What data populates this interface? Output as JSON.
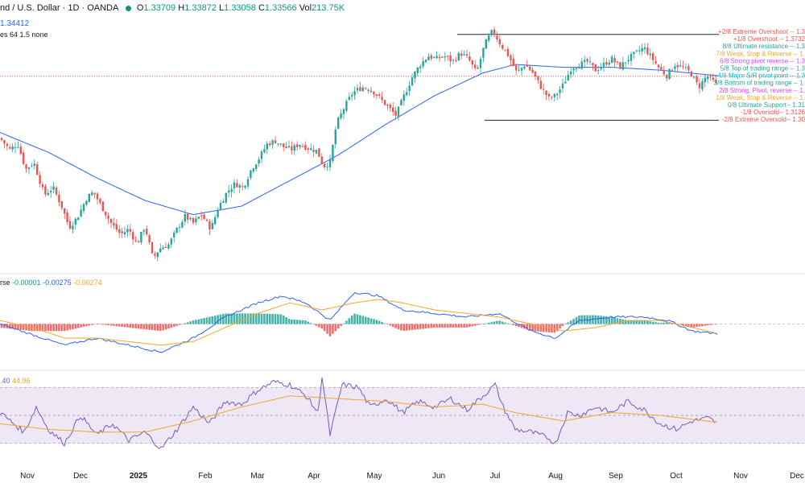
{
  "header": {
    "title": "nd / U.S. Dollar · 1D · OANDA",
    "open_label": "O",
    "open": "1.33709",
    "high_label": "H",
    "high": "1.33872",
    "low_label": "L",
    "low": "1.33058",
    "close_label": "C",
    "close": "1.33566",
    "vol_label": "Vol",
    "vol": "213.75K",
    "ma_value": "1.34412",
    "mm_settings": "es 64 1.5 none"
  },
  "macd_legend": {
    "prefix": "rse",
    "v1": "-0.00001",
    "v2": "-0.00275",
    "v3": "-0.00274"
  },
  "rsi_legend": {
    "v1": ".40",
    "v2": "44.96"
  },
  "colors": {
    "up": "#26a69a",
    "down": "#ef5350",
    "ma": "#2962ff",
    "signal": "#f5a623",
    "rsi": "#7e57c2",
    "rsi_bg": "#ede7f6"
  },
  "murrey_levels": [
    {
      "label": "+2/8 Extreme Overshoot --  1.3",
      "color": "#ef5350"
    },
    {
      "label": "+1/8 Overshoot --  1.3732",
      "color": "#ef5350"
    },
    {
      "label": "8/8 Ultimate resistance --  1.3",
      "color": "#26a69a"
    },
    {
      "label": "7/8 Weak, Stop & Reverse --  1.",
      "color": "#f5a623"
    },
    {
      "label": "6/8 Strong pivot reverse --  1.3",
      "color": "#e040fb"
    },
    {
      "label": "5/8 Top of trading range --  1.3",
      "color": "#26a69a"
    },
    {
      "label": "4/8 Major S/R pivot point --  1.3",
      "color": "#00bcd4"
    },
    {
      "label": "3/8 Bottom of trading range --  1.",
      "color": "#26a69a"
    },
    {
      "label": "2/8 Strong, Pivot, reverse --  1.",
      "color": "#e040fb"
    },
    {
      "label": "1/8 Weak, Stop & Reverse --  1.",
      "color": "#f5a623"
    },
    {
      "label": "0/8 Ultimate Support--  1.31",
      "color": "#26a69a"
    },
    {
      "label": "-1/8 Oversold--  1.3126",
      "color": "#ef5350"
    },
    {
      "label": "-2/8 Extreme Oversold--  1.30",
      "color": "#ef5350"
    }
  ],
  "chart_data": {
    "type": "candlestick",
    "x_tick_labels": [
      "Nov",
      "Dec",
      "2025",
      "Feb",
      "Mar",
      "Apr",
      "May",
      "Jun",
      "Jul",
      "Aug",
      "Sep",
      "Oct",
      "Nov",
      "Dec"
    ],
    "y_range": [
      1.21,
      1.385
    ],
    "candles_price_anchors": [
      [
        0,
        1.3
      ],
      [
        12,
        1.292
      ],
      [
        22,
        1.296
      ],
      [
        32,
        1.278
      ],
      [
        42,
        1.283
      ],
      [
        55,
        1.26
      ],
      [
        66,
        1.265
      ],
      [
        78,
        1.25
      ],
      [
        86,
        1.237
      ],
      [
        96,
        1.244
      ],
      [
        108,
        1.258
      ],
      [
        116,
        1.262
      ],
      [
        126,
        1.252
      ],
      [
        138,
        1.24
      ],
      [
        150,
        1.232
      ],
      [
        160,
        1.236
      ],
      [
        170,
        1.225
      ],
      [
        180,
        1.238
      ],
      [
        190,
        1.215
      ],
      [
        198,
        1.222
      ],
      [
        210,
        1.225
      ],
      [
        220,
        1.236
      ],
      [
        230,
        1.245
      ],
      [
        240,
        1.24
      ],
      [
        250,
        1.246
      ],
      [
        262,
        1.236
      ],
      [
        272,
        1.252
      ],
      [
        282,
        1.262
      ],
      [
        292,
        1.268
      ],
      [
        302,
        1.265
      ],
      [
        312,
        1.278
      ],
      [
        322,
        1.286
      ],
      [
        332,
        1.296
      ],
      [
        342,
        1.298
      ],
      [
        352,
        1.294
      ],
      [
        362,
        1.292
      ],
      [
        372,
        1.296
      ],
      [
        382,
        1.293
      ],
      [
        394,
        1.291
      ],
      [
        402,
        1.28
      ],
      [
        410,
        1.283
      ],
      [
        418,
        1.31
      ],
      [
        428,
        1.322
      ],
      [
        438,
        1.332
      ],
      [
        450,
        1.336
      ],
      [
        462,
        1.334
      ],
      [
        472,
        1.328
      ],
      [
        482,
        1.322
      ],
      [
        492,
        1.316
      ],
      [
        502,
        1.33
      ],
      [
        512,
        1.343
      ],
      [
        522,
        1.352
      ],
      [
        532,
        1.358
      ],
      [
        542,
        1.356
      ],
      [
        552,
        1.358
      ],
      [
        562,
        1.354
      ],
      [
        572,
        1.36
      ],
      [
        582,
        1.356
      ],
      [
        592,
        1.346
      ],
      [
        602,
        1.366
      ],
      [
        612,
        1.376
      ],
      [
        622,
        1.366
      ],
      [
        632,
        1.358
      ],
      [
        642,
        1.346
      ],
      [
        652,
        1.352
      ],
      [
        662,
        1.346
      ],
      [
        672,
        1.336
      ],
      [
        682,
        1.328
      ],
      [
        690,
        1.33
      ],
      [
        700,
        1.338
      ],
      [
        710,
        1.35
      ],
      [
        720,
        1.352
      ],
      [
        730,
        1.354
      ],
      [
        740,
        1.348
      ],
      [
        750,
        1.352
      ],
      [
        760,
        1.356
      ],
      [
        770,
        1.35
      ],
      [
        780,
        1.356
      ],
      [
        790,
        1.36
      ],
      [
        800,
        1.364
      ],
      [
        808,
        1.358
      ],
      [
        818,
        1.35
      ],
      [
        828,
        1.344
      ],
      [
        838,
        1.352
      ],
      [
        848,
        1.35
      ],
      [
        858,
        1.346
      ],
      [
        868,
        1.336
      ],
      [
        878,
        1.344
      ],
      [
        886,
        1.34
      ],
      [
        892,
        1.336
      ]
    ],
    "ma_price_anchors": [
      [
        0,
        1.304
      ],
      [
        60,
        1.29
      ],
      [
        120,
        1.272
      ],
      [
        180,
        1.256
      ],
      [
        240,
        1.246
      ],
      [
        300,
        1.252
      ],
      [
        360,
        1.27
      ],
      [
        420,
        1.288
      ],
      [
        480,
        1.31
      ],
      [
        540,
        1.33
      ],
      [
        600,
        1.346
      ],
      [
        640,
        1.352
      ],
      [
        700,
        1.35
      ],
      [
        760,
        1.35
      ],
      [
        820,
        1.348
      ],
      [
        892,
        1.344
      ]
    ],
    "murrey_rect_price": {
      "top": 1.3732,
      "bottom": 1.3126
    },
    "dotted_price_level": 1.3437,
    "macd": {
      "y_range": [
        -0.012,
        0.012
      ],
      "macd_line_anchors": [
        [
          0,
          0.0
        ],
        [
          40,
          -0.003
        ],
        [
          80,
          -0.006
        ],
        [
          120,
          -0.004
        ],
        [
          160,
          -0.006
        ],
        [
          200,
          -0.008
        ],
        [
          240,
          -0.004
        ],
        [
          280,
          0.002
        ],
        [
          320,
          0.006
        ],
        [
          350,
          0.008
        ],
        [
          380,
          0.006
        ],
        [
          410,
          0.001
        ],
        [
          440,
          0.009
        ],
        [
          470,
          0.008
        ],
        [
          500,
          0.004
        ],
        [
          540,
          0.003
        ],
        [
          580,
          0.002
        ],
        [
          620,
          0.003
        ],
        [
          660,
          -0.002
        ],
        [
          690,
          -0.004
        ],
        [
          720,
          0.001
        ],
        [
          760,
          0.002
        ],
        [
          800,
          0.002
        ],
        [
          830,
          0.001
        ],
        [
          860,
          -0.002
        ],
        [
          892,
          -0.00275
        ]
      ],
      "signal_line_anchors": [
        [
          0,
          0.001
        ],
        [
          40,
          -0.001
        ],
        [
          80,
          -0.004
        ],
        [
          120,
          -0.004
        ],
        [
          160,
          -0.005
        ],
        [
          200,
          -0.006
        ],
        [
          240,
          -0.005
        ],
        [
          280,
          -0.001
        ],
        [
          320,
          0.003
        ],
        [
          360,
          0.006
        ],
        [
          400,
          0.004
        ],
        [
          440,
          0.006
        ],
        [
          470,
          0.007
        ],
        [
          500,
          0.006
        ],
        [
          540,
          0.004
        ],
        [
          580,
          0.003
        ],
        [
          620,
          0.002
        ],
        [
          660,
          0.0
        ],
        [
          700,
          -0.002
        ],
        [
          740,
          -0.001
        ],
        [
          780,
          0.001
        ],
        [
          820,
          0.001
        ],
        [
          860,
          -0.001
        ],
        [
          892,
          -0.00274
        ]
      ]
    },
    "rsi": {
      "y_range": [
        20,
        80
      ],
      "band": [
        30,
        70
      ],
      "rsi_anchors": [
        [
          0,
          52
        ],
        [
          30,
          38
        ],
        [
          45,
          56
        ],
        [
          60,
          40
        ],
        [
          80,
          30
        ],
        [
          100,
          50
        ],
        [
          120,
          36
        ],
        [
          140,
          44
        ],
        [
          160,
          32
        ],
        [
          180,
          38
        ],
        [
          200,
          26
        ],
        [
          220,
          40
        ],
        [
          240,
          56
        ],
        [
          260,
          44
        ],
        [
          280,
          60
        ],
        [
          300,
          58
        ],
        [
          320,
          68
        ],
        [
          340,
          74
        ],
        [
          360,
          72
        ],
        [
          380,
          64
        ],
        [
          395,
          52
        ],
        [
          400,
          78
        ],
        [
          410,
          36
        ],
        [
          425,
          72
        ],
        [
          445,
          70
        ],
        [
          460,
          56
        ],
        [
          480,
          62
        ],
        [
          500,
          52
        ],
        [
          520,
          60
        ],
        [
          540,
          56
        ],
        [
          560,
          62
        ],
        [
          580,
          54
        ],
        [
          600,
          64
        ],
        [
          615,
          72
        ],
        [
          625,
          56
        ],
        [
          640,
          40
        ],
        [
          660,
          38
        ],
        [
          680,
          34
        ],
        [
          690,
          30
        ],
        [
          705,
          52
        ],
        [
          720,
          50
        ],
        [
          740,
          56
        ],
        [
          760,
          52
        ],
        [
          780,
          60
        ],
        [
          800,
          54
        ],
        [
          820,
          44
        ],
        [
          840,
          40
        ],
        [
          860,
          46
        ],
        [
          880,
          48
        ],
        [
          892,
          44
        ]
      ],
      "ma_anchors": [
        [
          0,
          44
        ],
        [
          60,
          40
        ],
        [
          120,
          38
        ],
        [
          180,
          38
        ],
        [
          240,
          46
        ],
        [
          300,
          56
        ],
        [
          360,
          64
        ],
        [
          420,
          62
        ],
        [
          480,
          60
        ],
        [
          540,
          56
        ],
        [
          600,
          58
        ],
        [
          640,
          52
        ],
        [
          700,
          46
        ],
        [
          760,
          52
        ],
        [
          820,
          50
        ],
        [
          892,
          44.96
        ]
      ]
    }
  }
}
